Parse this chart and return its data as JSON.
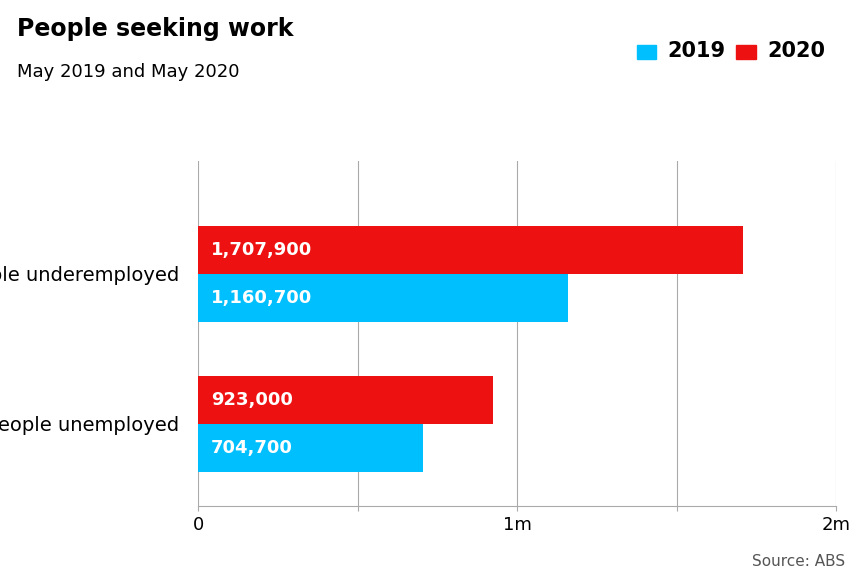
{
  "title": "People seeking work",
  "subtitle": "May 2019 and May 2020",
  "categories": [
    "People underemployed",
    "People unemployed"
  ],
  "values_2019": [
    1160700,
    704700
  ],
  "values_2020": [
    1707900,
    923000
  ],
  "labels_2019": [
    "1,160,700",
    "704,700"
  ],
  "labels_2020": [
    "1,707,900",
    "923,000"
  ],
  "color_2019": "#00BFFF",
  "color_2020": "#EE1111",
  "xlim": [
    0,
    2000000
  ],
  "xticks": [
    0,
    500000,
    1000000,
    1500000,
    2000000
  ],
  "xtick_labels": [
    "0",
    "",
    "1m",
    "",
    "2m"
  ],
  "bar_height": 0.32,
  "source_text": "Source: ABS",
  "legend_2019": "2019",
  "legend_2020": "2020",
  "background_color": "#ffffff",
  "title_fontsize": 17,
  "subtitle_fontsize": 13,
  "label_fontsize": 13,
  "ytick_fontsize": 14,
  "xtick_fontsize": 13
}
